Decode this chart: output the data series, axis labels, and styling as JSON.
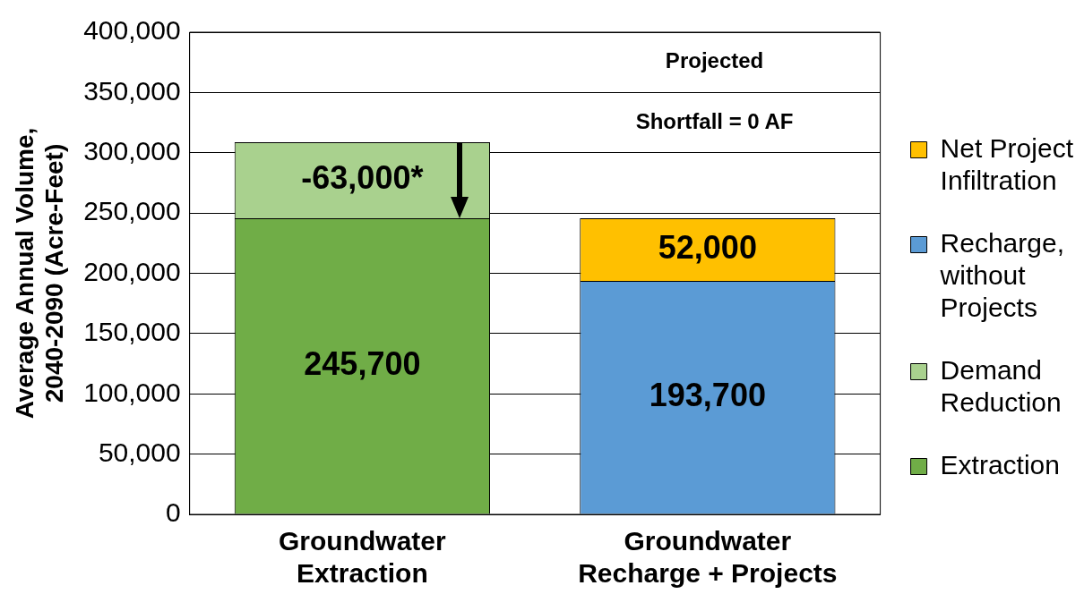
{
  "chart_data": {
    "type": "bar",
    "stacked": true,
    "categories": [
      "Groundwater Extraction",
      "Groundwater Recharge + Projects"
    ],
    "ylabel": "Average Annual Volume, 2040-2090 (Acre-Feet)",
    "ylim": [
      0,
      400000
    ],
    "yticks": [
      0,
      {
        "value": 50000,
        "label": "50,000"
      },
      {
        "value": 100000,
        "label": "100,000"
      },
      {
        "value": 150000,
        "label": "150,000"
      },
      {
        "value": 200000,
        "label": "200,000"
      },
      {
        "value": 250000,
        "label": "250,000"
      },
      {
        "value": 300000,
        "label": "300,000"
      },
      {
        "value": 350000,
        "label": "350,000"
      },
      {
        "value": 400000,
        "label": "400,000"
      }
    ],
    "grid": "y",
    "legend": "right",
    "annotations": [
      "Projected Shortfall = 0 AF"
    ],
    "series": [
      {
        "name": "Extraction",
        "color": "#70ad47",
        "values": [
          245700,
          null
        ],
        "value_labels": [
          "245,700",
          null
        ]
      },
      {
        "name": "Demand Reduction",
        "color": "#a9d18e",
        "values": [
          -63000,
          null
        ],
        "base": [
          308700,
          null
        ],
        "value_labels": [
          "-63,000*",
          null
        ]
      },
      {
        "name": "Recharge, without Projects",
        "color": "#5b9bd5",
        "values": [
          null,
          193700
        ],
        "value_labels": [
          null,
          "193,700"
        ]
      },
      {
        "name": "Net Project Infiltration",
        "color": "#ffc000",
        "values": [
          null,
          52000
        ],
        "value_labels": [
          null,
          "52,000"
        ]
      }
    ]
  }
}
